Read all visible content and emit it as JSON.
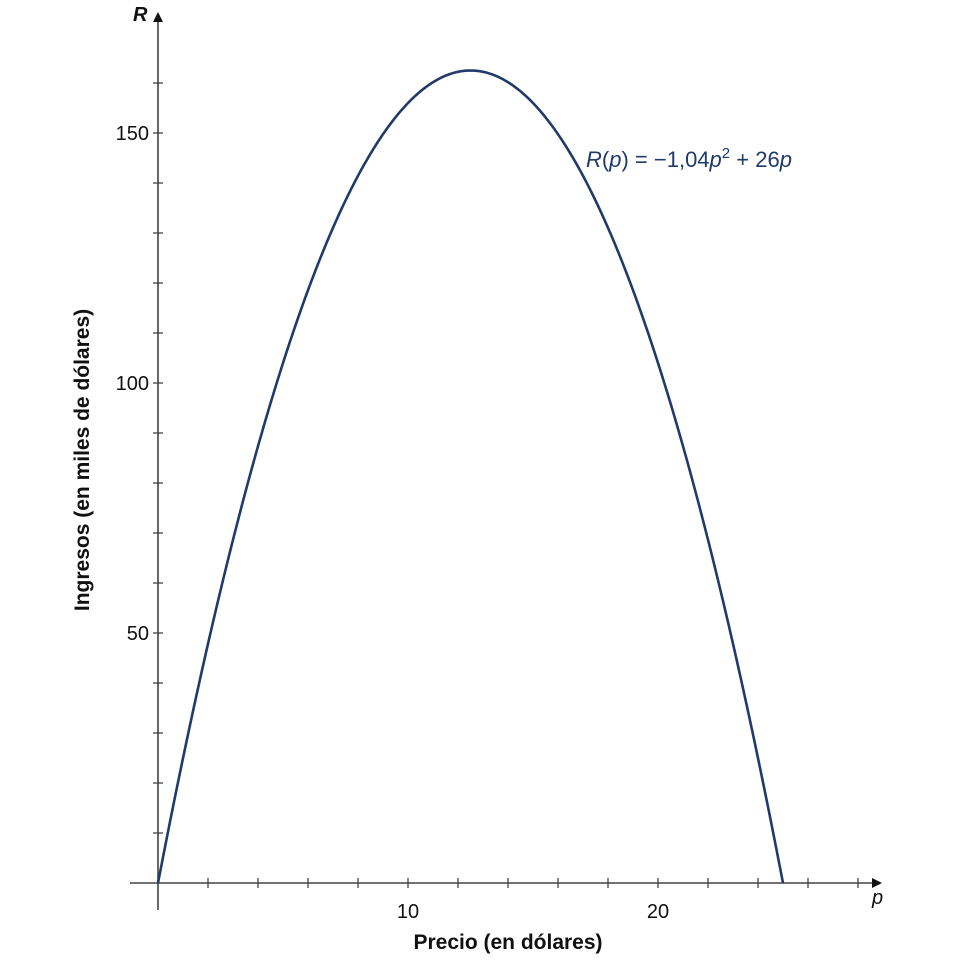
{
  "chart_data": {
    "type": "line",
    "title": "",
    "xlabel": "Precio (en dólares)",
    "ylabel": "Ingresos (en miles de dólares)",
    "x_axis_var": "p",
    "y_axis_var": "R",
    "xlim": [
      0,
      29
    ],
    "ylim": [
      0,
      170
    ],
    "x_ticks": [
      2,
      4,
      6,
      8,
      10,
      12,
      14,
      16,
      18,
      20,
      22,
      24,
      26,
      28
    ],
    "x_tick_labels": {
      "10": "10",
      "20": "20"
    },
    "y_ticks": [
      10,
      20,
      30,
      40,
      50,
      60,
      70,
      80,
      90,
      100,
      110,
      120,
      130,
      140,
      150,
      160
    ],
    "y_tick_labels": {
      "50": "50",
      "100": "100",
      "150": "150"
    },
    "grid": false,
    "series": [
      {
        "name": "R(p) = −1,04p² + 26p",
        "function": {
          "a": -1.04,
          "b": 26,
          "c": 0
        },
        "domain": [
          0,
          25
        ],
        "color": "#1f3a6b",
        "x": [
          0,
          2.5,
          5,
          7.5,
          10,
          12.5,
          15,
          17.5,
          20,
          22.5,
          25
        ],
        "values": [
          0,
          58.5,
          104,
          136.5,
          156,
          162.5,
          156,
          136.5,
          104,
          58.5,
          0
        ]
      }
    ],
    "annotations": [
      {
        "text_parts": [
          "R",
          "(",
          "p",
          ") = −1,04",
          "p",
          "2",
          " + 26",
          "p"
        ],
        "x": 17.2,
        "y": 144.5
      }
    ]
  },
  "labels": {
    "x_title": "Precio (en dólares)",
    "y_title": "Ingresos (en miles de dólares)",
    "x_var": "p",
    "y_var": "R",
    "eq": {
      "R": "R",
      "open": "(",
      "p1": "p",
      "mid": ") = −1,04",
      "p2": "p",
      "sup": "2",
      "plus": " + 26",
      "p3": "p"
    }
  }
}
